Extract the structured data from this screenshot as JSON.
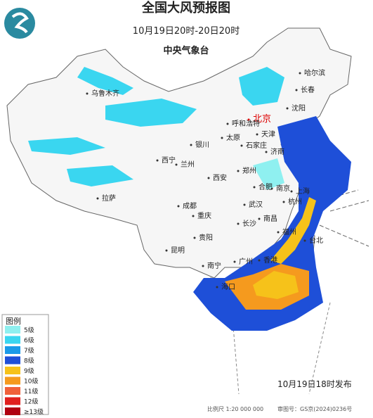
{
  "header": {
    "title": "全国大风预报图",
    "period": "10月19日20时-20日20时",
    "issuer": "中央气象台"
  },
  "cities": [
    "乌鲁木齐",
    "哈尔滨",
    "长春",
    "沈阳",
    "北京",
    "天津",
    "呼和浩特",
    "石家庄",
    "太原",
    "济南",
    "银川",
    "西宁",
    "兰州",
    "郑州",
    "西安",
    "合肥",
    "南京",
    "上海",
    "杭州",
    "武汉",
    "成都",
    "重庆",
    "长沙",
    "南昌",
    "拉萨",
    "福州",
    "台北",
    "贵阳",
    "昆明",
    "南宁",
    "广州",
    "香港",
    "海口"
  ],
  "legend": {
    "title": "图例",
    "items": [
      {
        "label": "5级",
        "color": "#8ff0f0"
      },
      {
        "label": "6级",
        "color": "#3ad6f0"
      },
      {
        "label": "7级",
        "color": "#1a9ae8"
      },
      {
        "label": "8级",
        "color": "#1e4fd8"
      },
      {
        "label": "9级",
        "color": "#f6c21a"
      },
      {
        "label": "10级",
        "color": "#f59a1e"
      },
      {
        "label": "11级",
        "color": "#f0603a"
      },
      {
        "label": "12级",
        "color": "#e0201e"
      },
      {
        "label": "≥13级",
        "color": "#b00010"
      }
    ]
  },
  "footer": {
    "published": "10月19日18时发布",
    "scale": "比例尺 1:20 000 000",
    "approval": "审图号：GS京(2024)0236号"
  }
}
